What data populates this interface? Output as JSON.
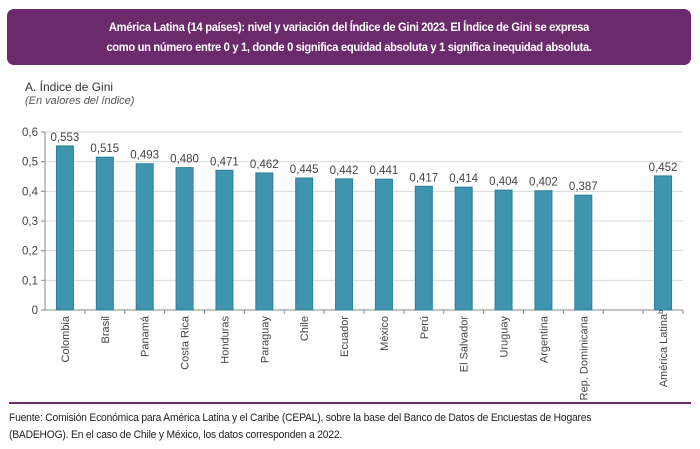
{
  "header": {
    "title_line1": "América Latina (14 países): nivel y variación del Índice de Gini 2023. El Índice de Gini se expresa",
    "title_line2": "como un número entre 0 y 1, donde 0 significa equidad absoluta y 1 significa inequidad absoluta."
  },
  "panel": {
    "title": "A. Índice de Gini",
    "subtitle": "(En valores del índice)"
  },
  "footer": {
    "source_line1": "Fuente: Comisión Económica para América Latina y el Caribe (CEPAL), sobre la base del Banco de Datos de Encuestas de Hogares",
    "source_line2": "(BADEHOG). En el caso de Chile y México, los datos corresponden a 2022."
  },
  "colors": {
    "bar": "#3f95b0",
    "bar_edge": "#2b7f99",
    "accent": "#6b2a6b",
    "grid": "#d9d9d9"
  },
  "chart_data": {
    "type": "bar",
    "title": "A. Índice de Gini",
    "subtitle": "(En valores del índice)",
    "xlabel": "",
    "ylabel": "",
    "ylim": [
      0,
      0.6
    ],
    "yticks": [
      0,
      0.1,
      0.2,
      0.3,
      0.4,
      0.5,
      0.6
    ],
    "ytick_labels": [
      "0",
      "0,1",
      "0,2",
      "0,3",
      "0,4",
      "0,5",
      "0,6"
    ],
    "grid": true,
    "categories": [
      "Colombia",
      "Brasil",
      "Panamá",
      "Costa Rica",
      "Honduras",
      "Paraguay",
      "Chile",
      "Ecuador",
      "México",
      "Perú",
      "El Salvador",
      "Uruguay",
      "Argentina",
      "Rep. Dominicana",
      "",
      "América Latina"
    ],
    "category_superscripts": [
      "",
      "",
      "",
      "",
      "",
      "",
      "",
      "",
      "",
      "",
      "",
      "",
      "",
      "",
      "",
      "b"
    ],
    "values": [
      0.553,
      0.515,
      0.493,
      0.48,
      0.471,
      0.462,
      0.445,
      0.442,
      0.441,
      0.417,
      0.414,
      0.404,
      0.402,
      0.387,
      null,
      0.452
    ],
    "value_labels": [
      "0,553",
      "0,515",
      "0,493",
      "0,480",
      "0,471",
      "0,462",
      "0,445",
      "0,442",
      "0,441",
      "0,417",
      "0,414",
      "0,404",
      "0,402",
      "0,387",
      "",
      "0,452"
    ]
  }
}
